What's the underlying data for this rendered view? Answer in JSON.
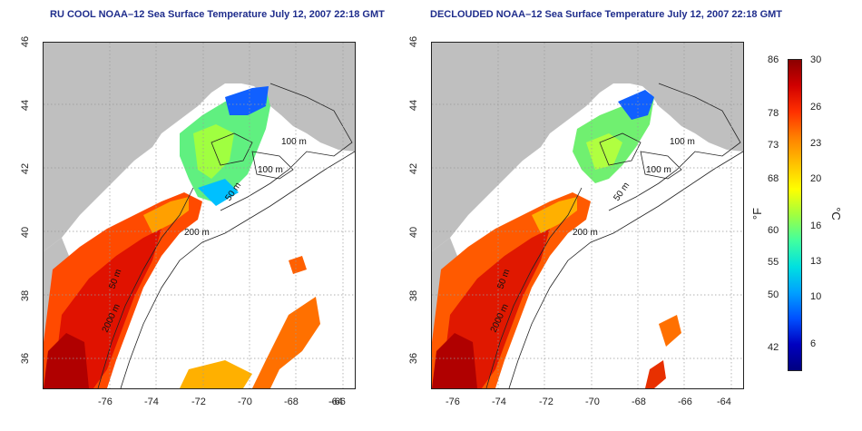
{
  "panels": [
    {
      "title": "RU COOL NOAA–12 Sea Surface Temperature July 12, 2007 22:18 GMT"
    },
    {
      "title": "DECLOUDED NOAA–12 Sea Surface Temperature July 12, 2007 22:18 GMT"
    }
  ],
  "axes": {
    "x_ticks": [
      "-76",
      "-74",
      "-72",
      "-70",
      "-68",
      "-66",
      "-64"
    ],
    "y_ticks": [
      "36",
      "38",
      "40",
      "42",
      "44",
      "46"
    ]
  },
  "contour_labels": [
    "100 m",
    "100 m",
    "50 m",
    "200 m",
    "50 m",
    "2000 m"
  ],
  "colorbar": {
    "fahrenheit_ticks": [
      "86",
      "78",
      "73",
      "68",
      "60",
      "55",
      "50",
      "42"
    ],
    "celsius_ticks": [
      "30",
      "26",
      "23",
      "20",
      "16",
      "13",
      "10",
      "6"
    ],
    "fahrenheit_unit": "°F",
    "celsius_unit": "°C",
    "colors": [
      "#8b0000",
      "#d10000",
      "#ff3000",
      "#ff8000",
      "#ffc000",
      "#ffff00",
      "#a0ff40",
      "#40ffa0",
      "#00e0e0",
      "#00a0ff",
      "#0050ff",
      "#0000c0",
      "#000080"
    ]
  },
  "colors": {
    "land": "#bfbfbf",
    "ocean_no_data": "#ffffff",
    "title": "#1f2d8c"
  }
}
